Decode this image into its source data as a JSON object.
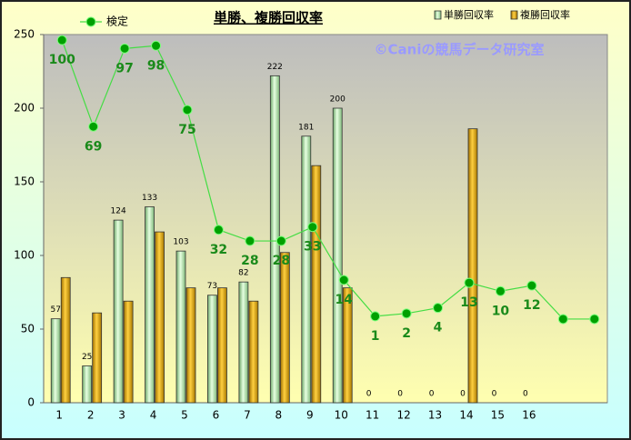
{
  "chart_data": {
    "type": "bar_line",
    "title": "単勝、複勝回収率",
    "watermark": "©Caniの競馬データ研究室",
    "categories": [
      "1",
      "2",
      "3",
      "4",
      "5",
      "6",
      "7",
      "8",
      "9",
      "10",
      "11",
      "12",
      "13",
      "14",
      "15",
      "16",
      null,
      null
    ],
    "series": [
      {
        "name": "検定",
        "type": "line",
        "axis": "y2",
        "color": "#44dd44",
        "marker_color": "#00a000",
        "label_color": "#1a8a1a",
        "values": [
          100,
          69,
          97,
          98,
          75,
          32,
          28,
          28,
          33,
          14,
          1,
          2,
          4,
          13,
          10,
          12,
          0,
          0
        ]
      },
      {
        "name": "単勝回収率",
        "type": "bar",
        "color": "#c8f5c0",
        "values": [
          57,
          25,
          124,
          133,
          103,
          73,
          82,
          222,
          181,
          200,
          0,
          0,
          0,
          0,
          0,
          0,
          null,
          null
        ]
      },
      {
        "name": "複勝回収率",
        "type": "bar",
        "color": "#e8b000",
        "values": [
          85,
          61,
          69,
          116,
          78,
          78,
          69,
          102,
          161,
          78,
          0,
          0,
          0,
          186,
          0,
          0,
          null,
          null
        ]
      }
    ],
    "ylim": [
      0,
      250
    ],
    "yticks": [
      0,
      50,
      100,
      150,
      200,
      250
    ],
    "y2lim": [
      -30,
      102
    ],
    "grid": false
  }
}
